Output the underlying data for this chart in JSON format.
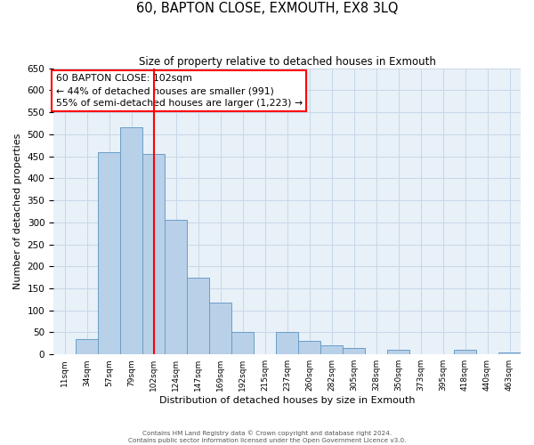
{
  "title": "60, BAPTON CLOSE, EXMOUTH, EX8 3LQ",
  "subtitle": "Size of property relative to detached houses in Exmouth",
  "xlabel": "Distribution of detached houses by size in Exmouth",
  "ylabel": "Number of detached properties",
  "bar_labels": [
    "11sqm",
    "34sqm",
    "57sqm",
    "79sqm",
    "102sqm",
    "124sqm",
    "147sqm",
    "169sqm",
    "192sqm",
    "215sqm",
    "237sqm",
    "260sqm",
    "282sqm",
    "305sqm",
    "328sqm",
    "350sqm",
    "373sqm",
    "395sqm",
    "418sqm",
    "440sqm",
    "463sqm"
  ],
  "bar_values": [
    0,
    35,
    460,
    515,
    455,
    305,
    175,
    118,
    50,
    0,
    50,
    30,
    20,
    15,
    0,
    10,
    0,
    0,
    10,
    0,
    5
  ],
  "bar_color": "#b8d0e8",
  "bar_edge_color": "#6a9fc8",
  "ylim": [
    0,
    650
  ],
  "yticks": [
    0,
    50,
    100,
    150,
    200,
    250,
    300,
    350,
    400,
    450,
    500,
    550,
    600,
    650
  ],
  "red_line_index": 4,
  "annotation_text": "60 BAPTON CLOSE: 102sqm\n← 44% of detached houses are smaller (991)\n55% of semi-detached houses are larger (1,223) →",
  "footer_line1": "Contains HM Land Registry data © Crown copyright and database right 2024.",
  "footer_line2": "Contains public sector information licensed under the Open Government Licence v3.0.",
  "background_color": "#ffffff",
  "ax_background_color": "#e8f0f8",
  "grid_color": "#c8d8e8"
}
